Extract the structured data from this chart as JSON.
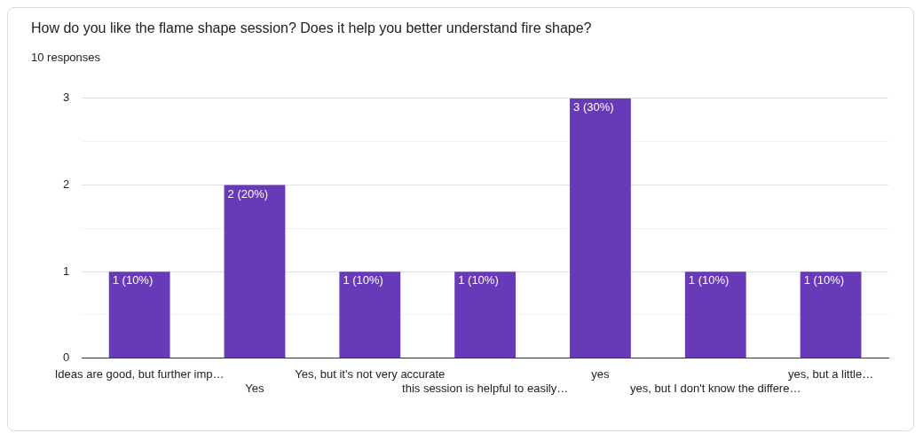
{
  "chart_data": {
    "type": "bar",
    "title": "How do you like the flame shape session? Does it help you better understand fire shape?",
    "subtitle": "10 responses",
    "categories": [
      "Ideas are good, but further imp…",
      "Yes",
      "Yes, but it's not very accurate",
      "this session is helpful to easily…",
      "yes",
      "yes, but I don't know the differe…",
      "yes, but a little…"
    ],
    "values": [
      1,
      2,
      1,
      1,
      3,
      1,
      1
    ],
    "value_labels": [
      "1 (10%)",
      "2 (20%)",
      "1 (10%)",
      "1 (10%)",
      "3 (30%)",
      "1 (10%)",
      "1 (10%)"
    ],
    "color": "#673ab7",
    "ylim": [
      0,
      3
    ],
    "yticks": [
      0,
      {
        "value": 0.5,
        "label": null
      },
      1,
      {
        "value": 1.5,
        "label": null
      },
      2,
      {
        "value": 2.5,
        "label": null
      },
      3
    ],
    "grid": "y",
    "legend": false
  }
}
